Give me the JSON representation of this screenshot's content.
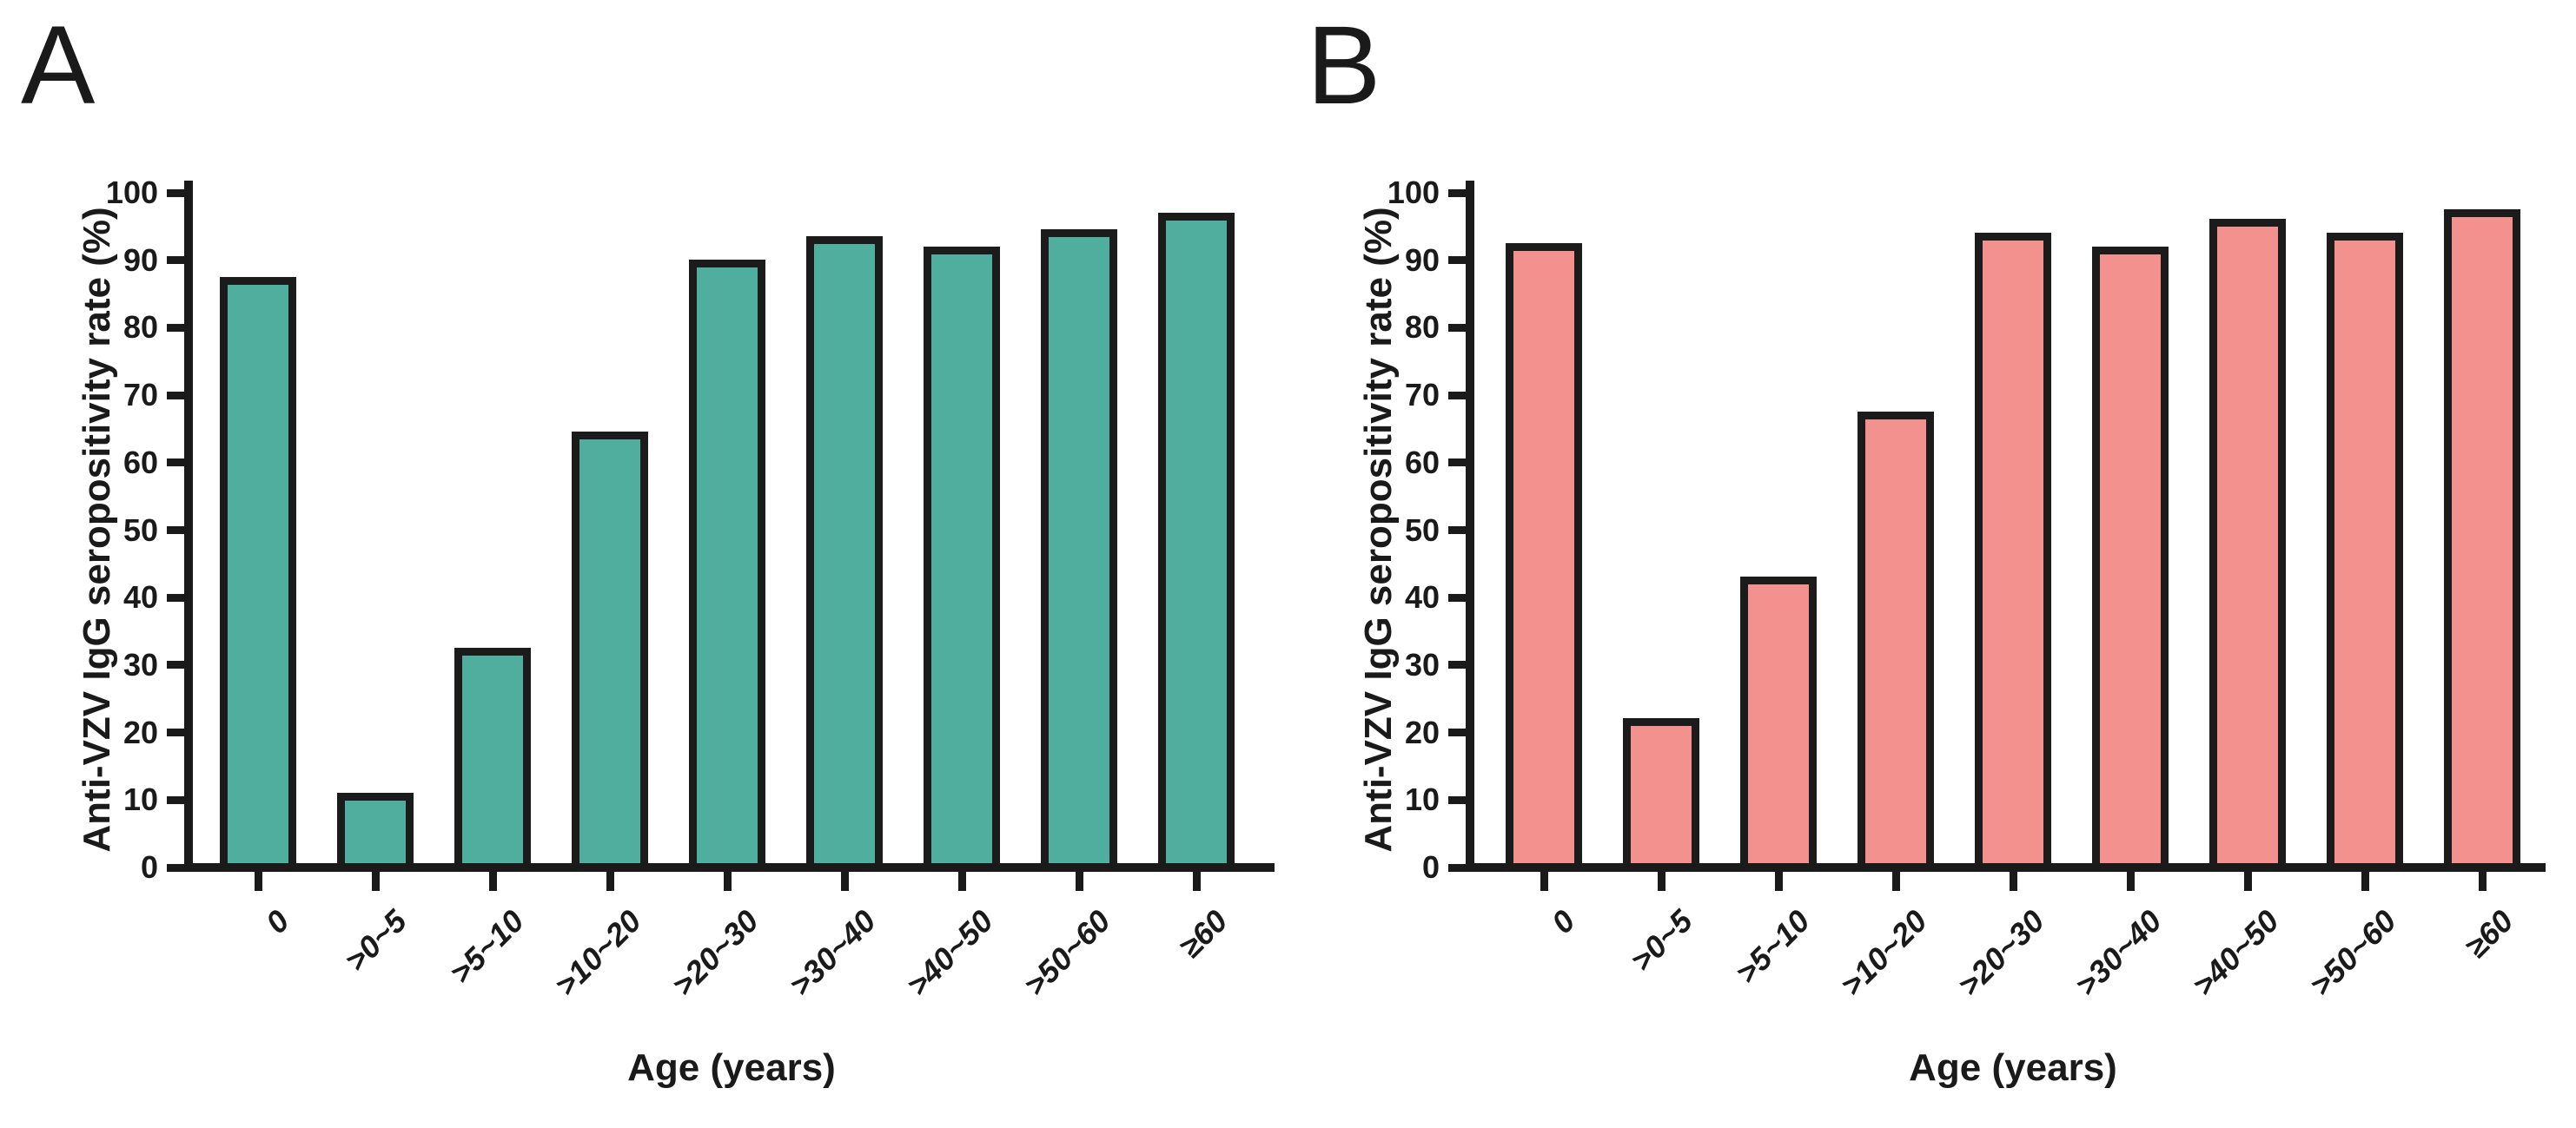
{
  "figure": {
    "background": "#ffffff",
    "axis_color": "#1a1a1a",
    "panels": [
      {
        "panel_label": "A"
      },
      {
        "panel_label": "B"
      }
    ]
  },
  "chart_data": [
    {
      "panel": "A",
      "type": "bar",
      "title": "",
      "xlabel": "Age (years)",
      "ylabel": "Anti-VZV IgG seropositivity rate (%)",
      "categories": [
        "0",
        ">0~5",
        ">5~10",
        ">10~20",
        ">20~30",
        ">30~40",
        ">40~50",
        ">50~60",
        "≥60"
      ],
      "values": [
        87,
        10.5,
        32,
        64,
        89.5,
        93,
        91.5,
        94,
        96.5
      ],
      "bar_color": "#4fae9d",
      "bar_border_color": "#1b1b1b",
      "ylim": [
        0,
        100
      ],
      "yticks": [
        0,
        10,
        20,
        30,
        40,
        50,
        60,
        70,
        80,
        90,
        100
      ],
      "grid": false,
      "legend": null
    },
    {
      "panel": "B",
      "type": "bar",
      "title": "",
      "xlabel": "Age (years)",
      "ylabel": "Anti-VZV IgG seropositivity rate (%)",
      "categories": [
        "0",
        ">0~5",
        ">5~10",
        ">10~20",
        ">20~30",
        ">30~40",
        ">40~50",
        ">50~60",
        "≥60"
      ],
      "values": [
        92,
        21.5,
        42.5,
        67,
        93.5,
        91.5,
        95.5,
        93.5,
        97
      ],
      "bar_color": "#f3918e",
      "bar_border_color": "#1b1b1b",
      "ylim": [
        0,
        100
      ],
      "yticks": [
        0,
        10,
        20,
        30,
        40,
        50,
        60,
        70,
        80,
        90,
        100
      ],
      "grid": false,
      "legend": null
    }
  ]
}
